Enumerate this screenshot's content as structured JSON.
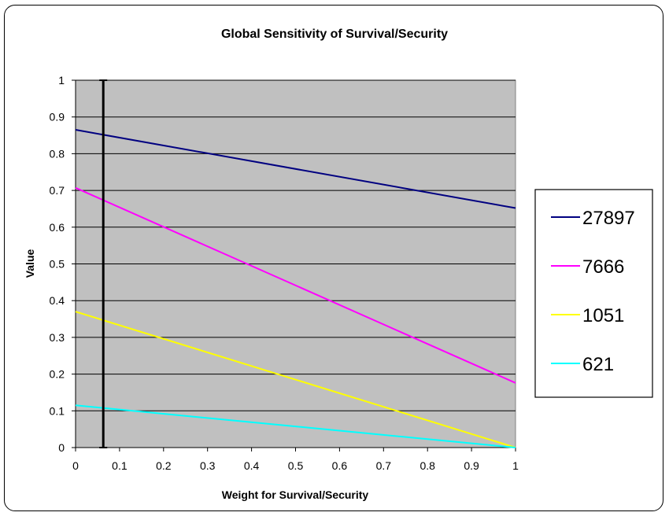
{
  "chart_data": {
    "type": "line",
    "title": "Global Sensitivity of Survival/Security",
    "xlabel": "Weight for Survival/Security",
    "ylabel": "Value",
    "xlim": [
      0,
      1
    ],
    "ylim": [
      0,
      1
    ],
    "x_ticks": [
      "0",
      "0.1",
      "0.2",
      "0.3",
      "0.4",
      "0.5",
      "0.6",
      "0.7",
      "0.8",
      "0.9",
      "1"
    ],
    "y_ticks": [
      "0",
      "0.1",
      "0.2",
      "0.3",
      "0.4",
      "0.5",
      "0.6",
      "0.7",
      "0.8",
      "0.9",
      "1"
    ],
    "grid": "horizontal",
    "plot_background": "#c0c0c0",
    "legend_position": "right",
    "reference_line": {
      "x": 0.063,
      "color": "#000000"
    },
    "series": [
      {
        "name": "27897",
        "color": "#000080",
        "x": [
          0,
          1
        ],
        "y": [
          0.865,
          0.652
        ]
      },
      {
        "name": "7666",
        "color": "#ff00ff",
        "x": [
          0,
          1
        ],
        "y": [
          0.707,
          0.176
        ]
      },
      {
        "name": "1051",
        "color": "#ffff00",
        "x": [
          0,
          1
        ],
        "y": [
          0.37,
          0.0
        ]
      },
      {
        "name": "621",
        "color": "#00ffff",
        "x": [
          0,
          1
        ],
        "y": [
          0.115,
          0.0
        ]
      }
    ]
  }
}
